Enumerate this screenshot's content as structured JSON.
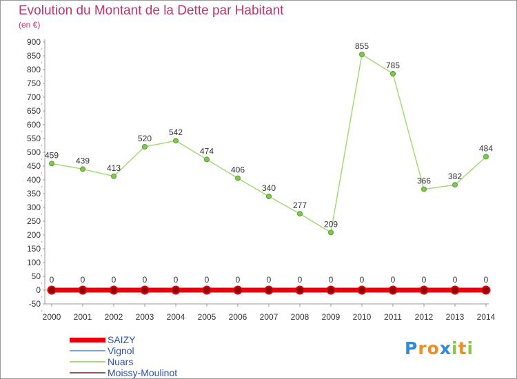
{
  "chart_data": {
    "type": "line",
    "title": "Evolution du Montant de la Dette par Habitant",
    "subtitle": "(en €)",
    "x": [
      "2000",
      "2001",
      "2002",
      "2003",
      "2004",
      "2005",
      "2006",
      "2007",
      "2008",
      "2009",
      "2010",
      "2011",
      "2012",
      "2013",
      "2014"
    ],
    "ylim": [
      -50,
      900
    ],
    "yticks": [
      -50,
      0,
      50,
      100,
      150,
      200,
      250,
      300,
      350,
      400,
      450,
      500,
      550,
      600,
      650,
      700,
      750,
      800,
      850,
      900
    ],
    "grid": false,
    "legend_position": "bottom-left",
    "series": [
      {
        "name": "SAIZY",
        "color": "#e8000b",
        "values": [
          0,
          0,
          0,
          0,
          0,
          0,
          0,
          0,
          0,
          0,
          0,
          0,
          0,
          0,
          0
        ]
      },
      {
        "name": "Vignol",
        "color": "#7aa6d6",
        "values": [
          0,
          0,
          0,
          0,
          0,
          0,
          0,
          0,
          0,
          0,
          0,
          0,
          0,
          0,
          0
        ]
      },
      {
        "name": "Nuars",
        "color": "#a6d976",
        "values": [
          459,
          439,
          413,
          520,
          542,
          474,
          406,
          340,
          277,
          209,
          855,
          785,
          366,
          382,
          484
        ]
      },
      {
        "name": "Moissy-Moulinot",
        "color": "#8b5a5a",
        "values": [
          0,
          0,
          0,
          0,
          0,
          0,
          0,
          0,
          0,
          0,
          0,
          0,
          0,
          0,
          0
        ]
      }
    ]
  },
  "logo": {
    "text": "Proxiti",
    "letters": [
      "P",
      "r",
      "o",
      "x",
      "i",
      "t",
      "i"
    ],
    "colors": [
      "#2e8bd8",
      "#f28c1e",
      "#f28c1e",
      "#2e8bd8",
      "#8cc63f",
      "#f28c1e",
      "#8cc63f"
    ]
  }
}
